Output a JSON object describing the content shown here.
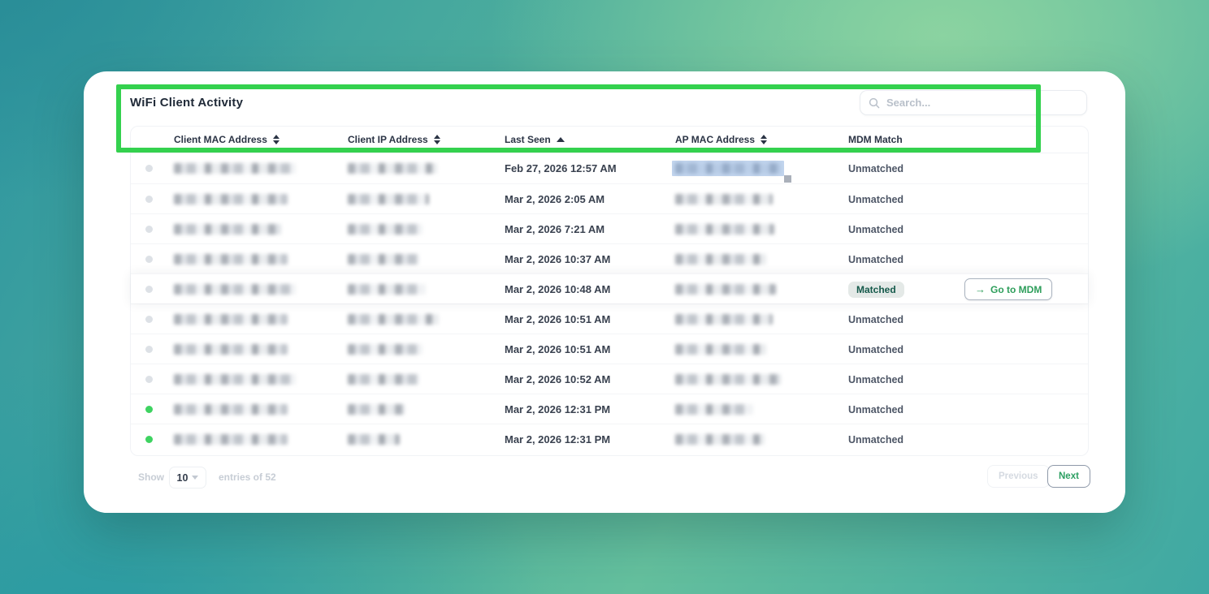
{
  "page": {
    "title": "WiFi Client Activity"
  },
  "search": {
    "placeholder": "Search..."
  },
  "table": {
    "columns": [
      {
        "label": "Client MAC Address",
        "sort": "both"
      },
      {
        "label": "Client IP Address",
        "sort": "both"
      },
      {
        "label": "Last Seen",
        "sort": "asc"
      },
      {
        "label": "AP MAC Address",
        "sort": "both"
      },
      {
        "label": "MDM Match",
        "sort": "none"
      }
    ],
    "rows": [
      {
        "last_seen": "Feb 27, 2026 12:57 AM",
        "mdm_match": "Unmatched",
        "status_dot": "gray",
        "ap_selected": true
      },
      {
        "last_seen": "Mar 2, 2026 2:05 AM",
        "mdm_match": "Unmatched",
        "status_dot": "gray"
      },
      {
        "last_seen": "Mar 2, 2026 7:21 AM",
        "mdm_match": "Unmatched",
        "status_dot": "gray"
      },
      {
        "last_seen": "Mar 2, 2026 10:37 AM",
        "mdm_match": "Unmatched",
        "status_dot": "gray"
      },
      {
        "last_seen": "Mar 2, 2026 10:48 AM",
        "mdm_match": "Matched",
        "status_dot": "gray",
        "action": "Go to MDM"
      },
      {
        "last_seen": "Mar 2, 2026 10:51 AM",
        "mdm_match": "Unmatched",
        "status_dot": "gray"
      },
      {
        "last_seen": "Mar 2, 2026 10:51 AM",
        "mdm_match": "Unmatched",
        "status_dot": "gray"
      },
      {
        "last_seen": "Mar 2, 2026 10:52 AM",
        "mdm_match": "Unmatched",
        "status_dot": "gray"
      },
      {
        "last_seen": "Mar 2, 2026 12:31 PM",
        "mdm_match": "Unmatched",
        "status_dot": "green"
      },
      {
        "last_seen": "Mar 2, 2026 12:31 PM",
        "mdm_match": "Unmatched",
        "status_dot": "green"
      }
    ]
  },
  "action_button": {
    "arrow": "→",
    "label": "Go to MDM"
  },
  "footer": {
    "show_label": "Show",
    "page_size": "10",
    "entries_label": "entries of 52",
    "previous_label": "Previous",
    "next_label": "Next"
  },
  "colors": {
    "annotation_green": "#34d14e",
    "status_dot_green": "#3ed361",
    "status_dot_gray": "#dde1e6",
    "action_green": "#2e9e5b",
    "matched_badge_bg": "#e4e9e7",
    "matched_badge_text": "#14594a"
  }
}
